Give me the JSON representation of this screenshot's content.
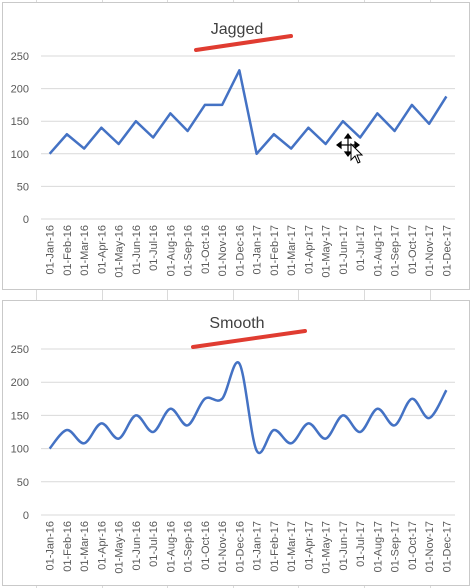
{
  "chart_data": [
    {
      "type": "line",
      "title": "Jagged",
      "smooth": false,
      "ylim": [
        0,
        250
      ],
      "yticks": [
        0,
        50,
        100,
        150,
        200,
        250
      ],
      "grid": true,
      "categories": [
        "01-Jan-16",
        "01-Feb-16",
        "01-Mar-16",
        "01-Apr-16",
        "01-May-16",
        "01-Jun-16",
        "01-Jul-16",
        "01-Aug-16",
        "01-Sep-16",
        "01-Oct-16",
        "01-Nov-16",
        "01-Dec-16",
        "01-Jan-17",
        "01-Feb-17",
        "01-Mar-17",
        "01-Apr-17",
        "01-May-17",
        "01-Jun-17",
        "01-Jul-17",
        "01-Aug-17",
        "01-Sep-17",
        "01-Oct-17",
        "01-Nov-17",
        "01-Dec-17"
      ],
      "series": [
        {
          "values": [
            100,
            130,
            108,
            140,
            115,
            150,
            125,
            162,
            135,
            175,
            175,
            228,
            100,
            130,
            108,
            140,
            115,
            150,
            125,
            162,
            135,
            175,
            146,
            188
          ]
        }
      ]
    },
    {
      "type": "line",
      "title": "Smooth",
      "smooth": true,
      "ylim": [
        0,
        250
      ],
      "yticks": [
        0,
        50,
        100,
        150,
        200,
        250
      ],
      "grid": true,
      "categories": [
        "01-Jan-16",
        "01-Feb-16",
        "01-Mar-16",
        "01-Apr-16",
        "01-May-16",
        "01-Jun-16",
        "01-Jul-16",
        "01-Aug-16",
        "01-Sep-16",
        "01-Oct-16",
        "01-Nov-16",
        "01-Dec-16",
        "01-Jan-17",
        "01-Feb-17",
        "01-Mar-17",
        "01-Apr-17",
        "01-May-17",
        "01-Jun-17",
        "01-Jul-17",
        "01-Aug-17",
        "01-Sep-17",
        "01-Oct-17",
        "01-Nov-17",
        "01-Dec-17"
      ],
      "series": [
        {
          "values": [
            100,
            128,
            108,
            138,
            115,
            150,
            125,
            160,
            135,
            175,
            175,
            228,
            97,
            128,
            108,
            138,
            115,
            150,
            125,
            160,
            135,
            175,
            146,
            188
          ]
        }
      ]
    }
  ],
  "colors": {
    "line": "#4472c4",
    "accent_stroke": "#e03c31",
    "grid": "#d9d9d9",
    "axis_text": "#595959"
  },
  "icons": {
    "cursor": "move-cursor-icon"
  }
}
